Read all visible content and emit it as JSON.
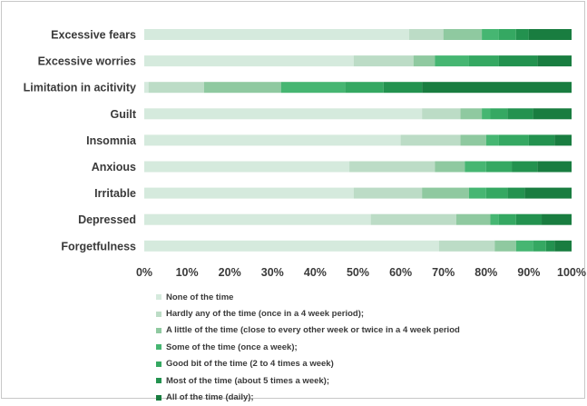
{
  "chart_data": {
    "type": "bar",
    "orientation": "horizontal",
    "stacked": true,
    "categories": [
      "Excessive fears",
      "Excessive worries",
      "Limitation in acitivity",
      "Guilt",
      "Insomnia",
      "Anxious",
      "Irritable",
      "Depressed",
      "Forgetfulness"
    ],
    "x_ticks": [
      "0%",
      "10%",
      "20%",
      "30%",
      "40%",
      "50%",
      "60%",
      "70%",
      "80%",
      "90%",
      "100%"
    ],
    "xlim": [
      0,
      100
    ],
    "grid": false,
    "legend_position": "bottom",
    "series": [
      {
        "name": "None of the time",
        "color": "#d5eadd",
        "values": [
          62,
          49,
          1,
          65,
          60,
          48,
          49,
          53,
          69
        ]
      },
      {
        "name": "Hardly any of the time (once in a 4 week period);",
        "color": "#bcdcc6",
        "values": [
          8,
          14,
          13,
          9,
          14,
          20,
          16,
          20,
          13
        ]
      },
      {
        "name": "A little of the time (close to every other week or twice in a 4 week period",
        "color": "#8fc9a0",
        "values": [
          9,
          5,
          18,
          5,
          6,
          7,
          11,
          8,
          5
        ]
      },
      {
        "name": "Some of the time (once a week);",
        "color": "#46b672",
        "values": [
          4,
          8,
          15,
          2,
          3,
          5,
          4,
          2,
          4
        ]
      },
      {
        "name": "Good bit of the time (2 to 4 times a week)",
        "color": "#35a862",
        "values": [
          4,
          7,
          9,
          4,
          7,
          6,
          5,
          4,
          3
        ]
      },
      {
        "name": "Most of the time (about 5 times a week);",
        "color": "#23924f",
        "values": [
          3,
          9,
          9,
          6,
          6,
          6,
          4,
          6,
          2
        ]
      },
      {
        "name": "All of the time (daily);",
        "color": "#197d40",
        "values": [
          10,
          8,
          35,
          9,
          4,
          8,
          11,
          7,
          4
        ]
      }
    ]
  }
}
